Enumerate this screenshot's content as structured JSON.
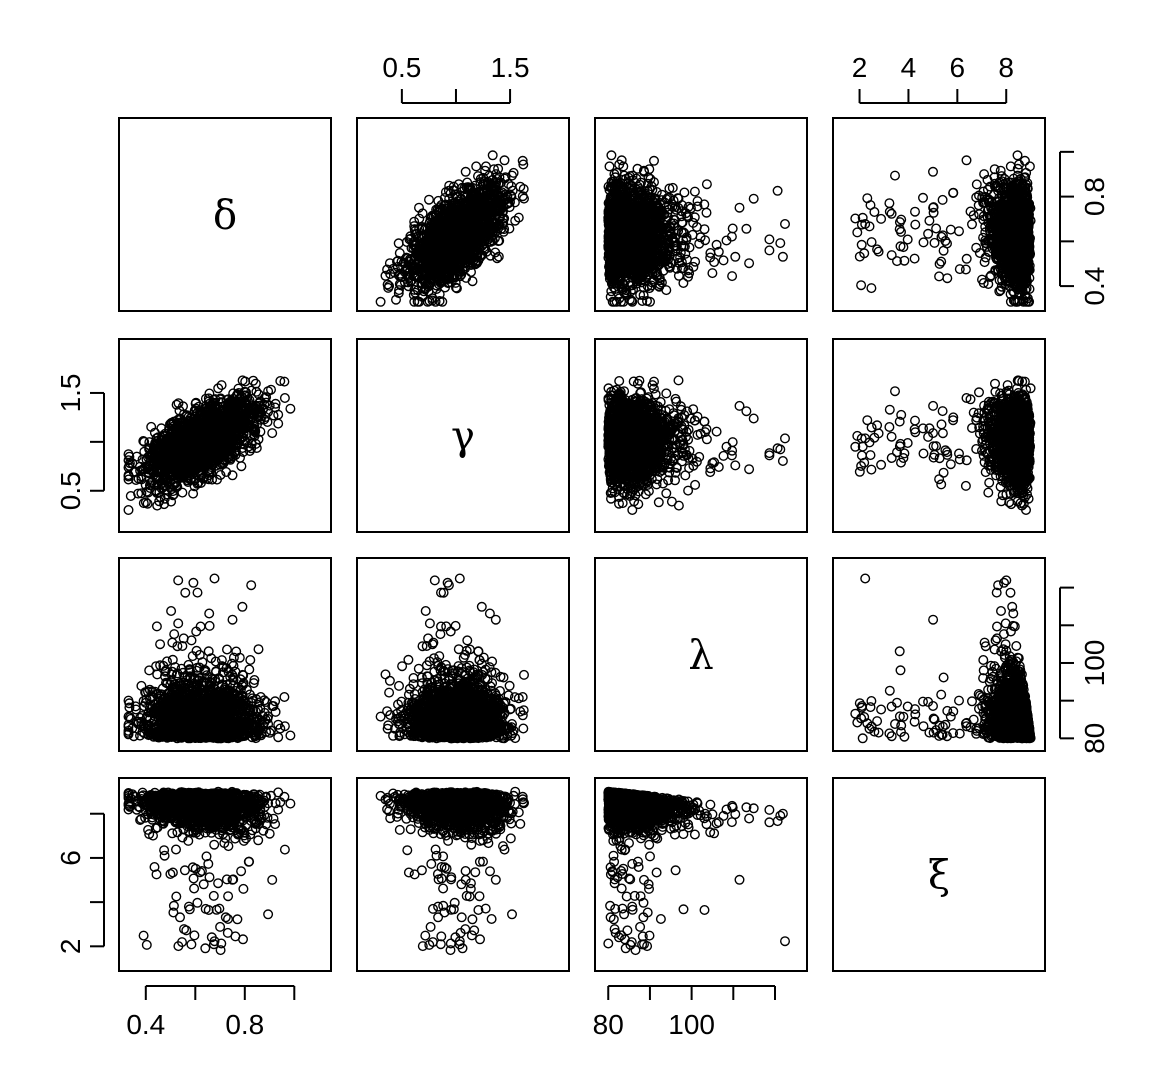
{
  "chart_data": {
    "type": "scatter",
    "title": "",
    "layout": "scatterplot-matrix",
    "variables": [
      {
        "symbol": "δ",
        "range": [
          0.32,
          1.12
        ],
        "ticks": [
          0.4,
          0.6,
          0.8,
          1.0
        ],
        "tick_labels": [
          "0.4",
          "",
          "0.8",
          ""
        ]
      },
      {
        "symbol": "γ",
        "range": [
          0.15,
          1.98
        ],
        "ticks": [
          0.5,
          1.0,
          1.5
        ],
        "tick_labels": [
          "0.5",
          "",
          "1.5"
        ]
      },
      {
        "symbol": "λ",
        "range": [
          78.5,
          126
        ],
        "ticks": [
          80,
          90,
          100,
          110,
          120
        ],
        "tick_labels": [
          "80",
          "",
          "100",
          "",
          ""
        ]
      },
      {
        "symbol": "ξ",
        "range": [
          1.2,
          9.3
        ],
        "ticks": [
          2,
          4,
          6,
          8
        ],
        "tick_labels": [
          "2",
          "4",
          "6",
          "8"
        ]
      }
    ],
    "axes": {
      "top": [
        {
          "column": 1,
          "variable": 1,
          "tick_labels": [
            "0.5",
            "",
            "1.5"
          ]
        },
        {
          "column": 3,
          "variable": 3,
          "tick_labels": [
            "2",
            "4",
            "6",
            "8"
          ]
        }
      ],
      "bottom": [
        {
          "column": 0,
          "variable": 0,
          "tick_labels": [
            "0.4",
            "",
            "0.8",
            ""
          ]
        },
        {
          "column": 2,
          "variable": 2,
          "tick_labels": [
            "80",
            "",
            "100",
            "",
            ""
          ]
        }
      ],
      "left": [
        {
          "row": 1,
          "variable": 1,
          "tick_labels": [
            "0.5",
            "",
            "1.5"
          ]
        },
        {
          "row": 3,
          "variable": 3,
          "tick_labels": [
            "2",
            "",
            "6",
            ""
          ]
        }
      ],
      "right": [
        {
          "row": 0,
          "variable": 0,
          "tick_labels": [
            "0.4",
            "",
            "0.8",
            ""
          ]
        },
        {
          "row": 2,
          "variable": 2,
          "tick_labels": [
            "80",
            "",
            "100",
            "",
            ""
          ]
        }
      ]
    },
    "grid": false,
    "legend": "none",
    "marker": "open-circle",
    "color": "#000000",
    "pair_summary": {
      "delta_gamma": "positive correlation, dense elliptical cloud",
      "delta_lambda": "triangular, lambda mostly 80-95",
      "delta_xi": "negative, xi concentrated 7-9",
      "gamma_lambda": "triangular",
      "gamma_xi": "xi concentrated 7-9",
      "lambda_xi": "xi concentrated 7-9, lambda 80-100"
    }
  }
}
